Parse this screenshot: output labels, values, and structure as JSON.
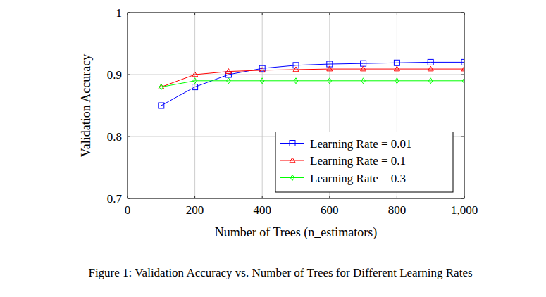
{
  "chart_data": {
    "type": "line",
    "title": "Figure 1: Validation Accuracy vs. Number of Trees for Different Learning Rates",
    "x_label": "Number of Trees (n_estimators)",
    "y_label": "Validation Accuracy",
    "x": [
      100,
      200,
      300,
      400,
      500,
      600,
      700,
      800,
      900,
      1000
    ],
    "series": [
      {
        "name": "Learning Rate = 0.01",
        "color": "#0000ff",
        "marker": "square",
        "values": [
          0.85,
          0.88,
          0.9,
          0.91,
          0.915,
          0.917,
          0.918,
          0.919,
          0.92,
          0.92
        ]
      },
      {
        "name": "Learning Rate = 0.1",
        "color": "#ff0000",
        "marker": "triangle",
        "values": [
          0.88,
          0.9,
          0.905,
          0.907,
          0.908,
          0.909,
          0.909,
          0.909,
          0.909,
          0.909
        ]
      },
      {
        "name": "Learning Rate = 0.3",
        "color": "#00ff00",
        "marker": "diamond",
        "values": [
          0.88,
          0.89,
          0.89,
          0.89,
          0.89,
          0.89,
          0.89,
          0.89,
          0.89,
          0.89
        ]
      }
    ],
    "xlim": [
      0,
      1000
    ],
    "ylim": [
      0.7,
      1
    ],
    "xticks": [
      0,
      200,
      400,
      600,
      800,
      {
        "value": 1000,
        "label": "1,000"
      }
    ],
    "yticks": [
      0.7,
      0.8,
      0.9,
      1
    ],
    "grid": true,
    "legend": "lower right"
  }
}
